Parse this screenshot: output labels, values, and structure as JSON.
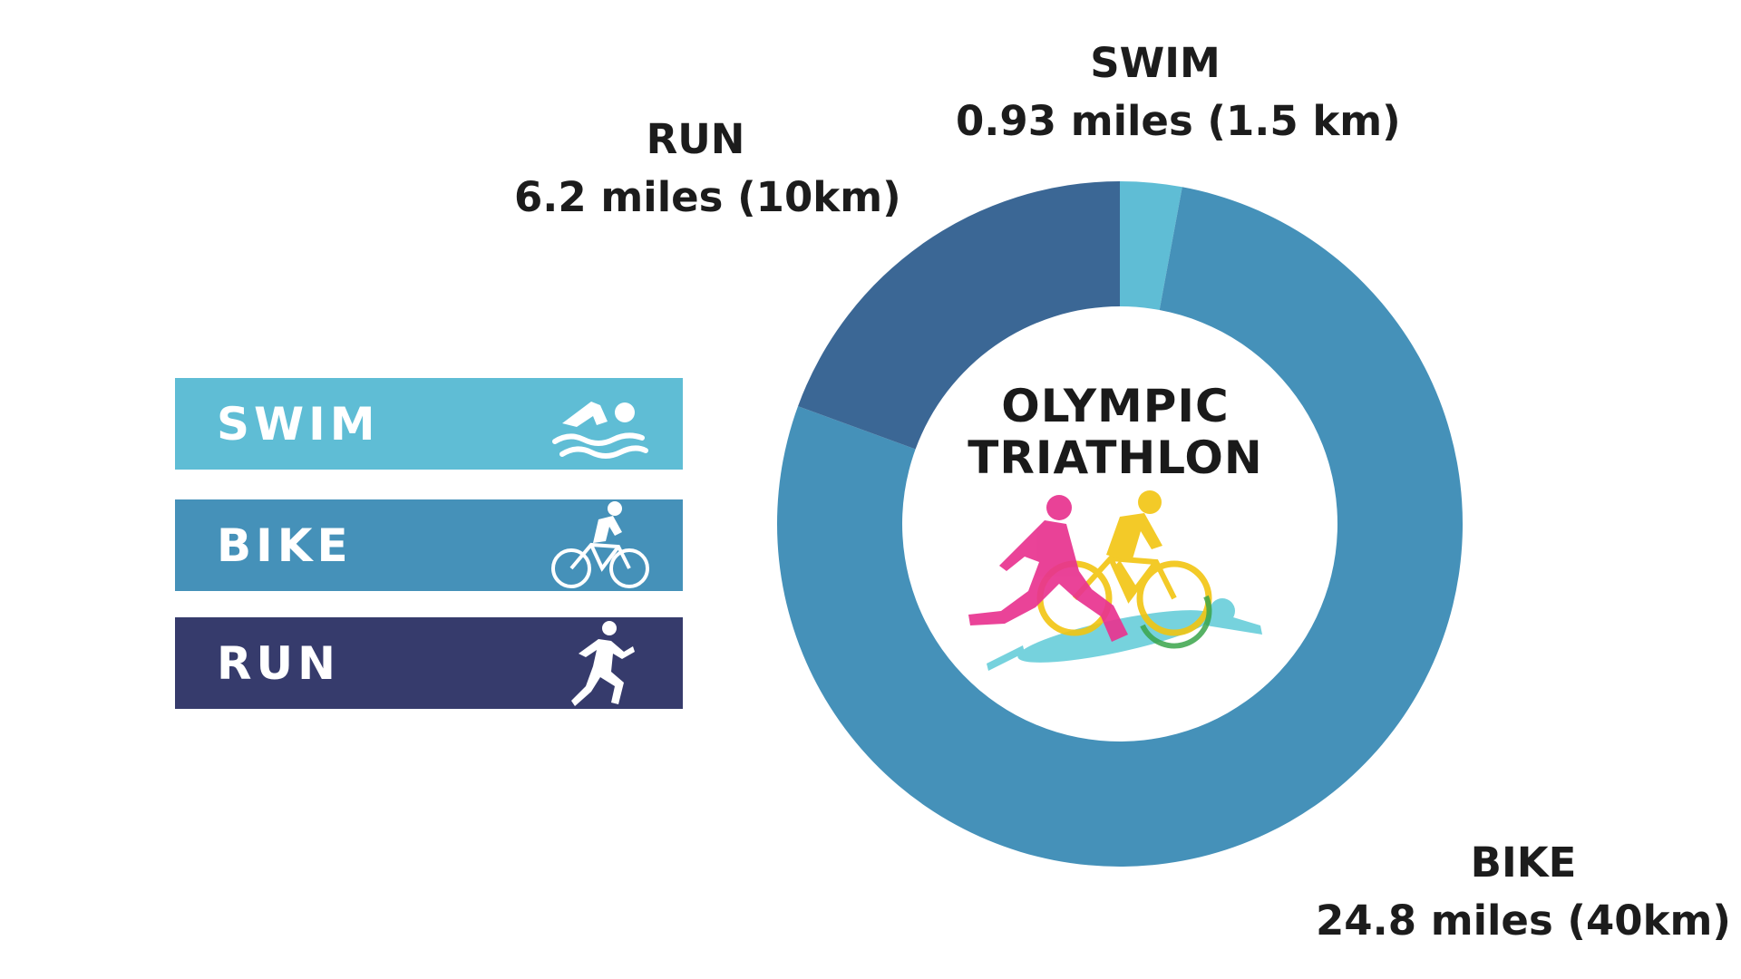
{
  "colors": {
    "swim": "#5fbdd5",
    "bike": "#4591b9",
    "run_segment": "#3b6795",
    "run_legend": "#363b6c"
  },
  "legend": [
    {
      "label": "SWIM",
      "icon": "swimmer-icon"
    },
    {
      "label": "BIKE",
      "icon": "cyclist-icon"
    },
    {
      "label": "RUN",
      "icon": "runner-icon"
    }
  ],
  "labels": {
    "swim": {
      "name": "SWIM",
      "distance": "0.93 miles (1.5 km)"
    },
    "run": {
      "name": "RUN",
      "distance": "6.2 miles (10km)"
    },
    "bike": {
      "name": "BIKE",
      "distance": "24.8 miles (40km)"
    }
  },
  "center": {
    "line1": "OLYMPIC",
    "line2": "TRIATHLON",
    "illustration": "triathlon-athletes-icon"
  },
  "chart_data": {
    "type": "pie",
    "donut": true,
    "categories": [
      "SWIM",
      "BIKE",
      "RUN"
    ],
    "values": [
      1.5,
      40,
      10
    ],
    "units": "km",
    "colors": [
      "#5fbdd5",
      "#4591b9",
      "#3b6795"
    ],
    "title": "OLYMPIC TRIATHLON"
  }
}
